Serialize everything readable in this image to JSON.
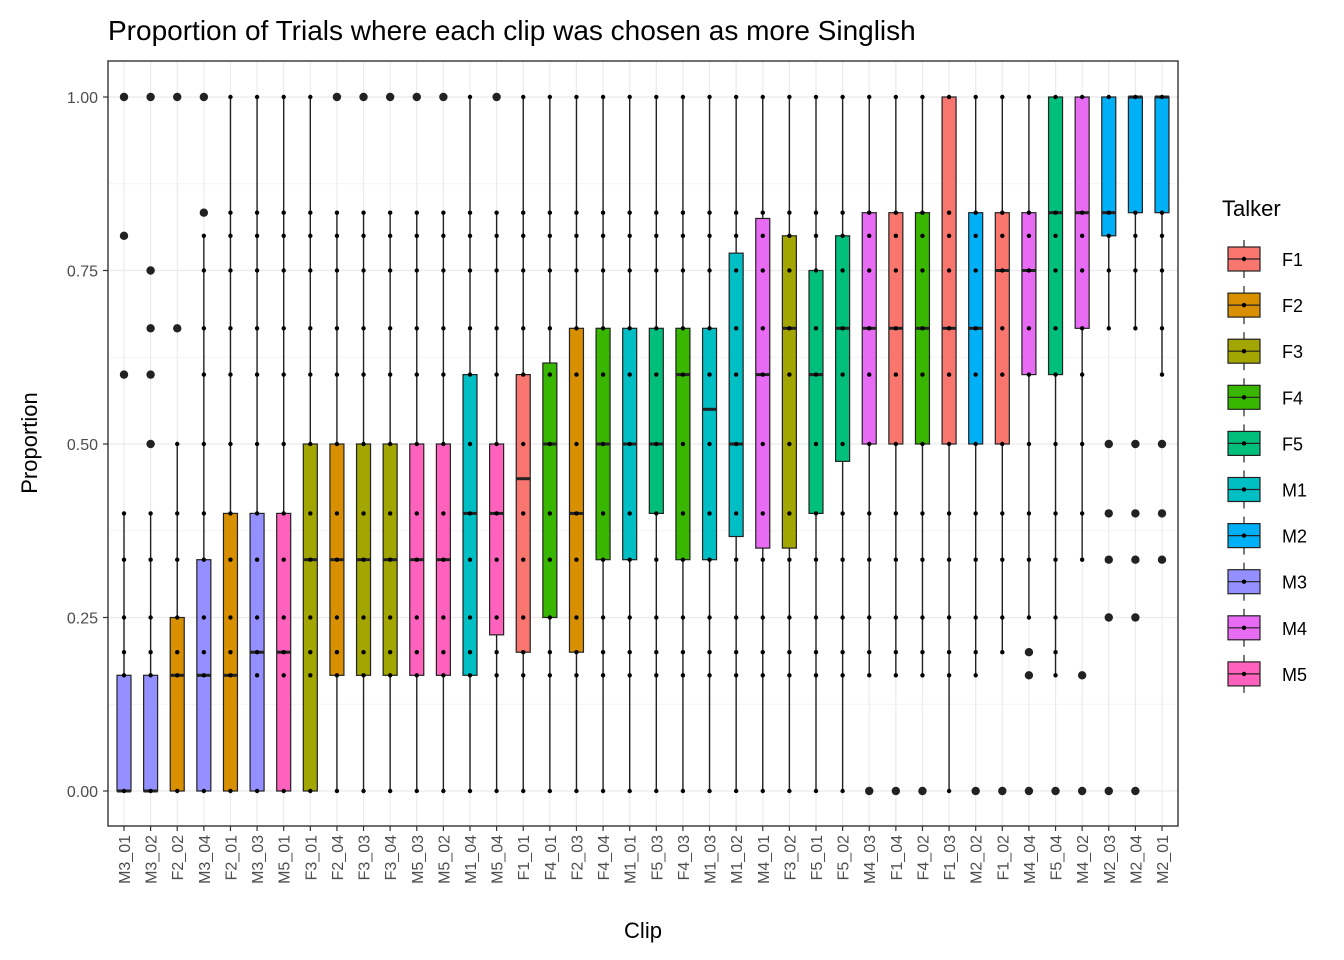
{
  "chart_data": {
    "type": "boxplot",
    "title": "Proportion of Trials where each clip was chosen as more Singlish",
    "xlabel": "Clip",
    "ylabel": "Proportion",
    "ylim": [
      -0.045,
      1.045
    ],
    "y_ticks": [
      "0.00",
      "0.25",
      "0.50",
      "0.75",
      "1.00"
    ],
    "y_tick_values": [
      0,
      0.25,
      0.5,
      0.75,
      1.0
    ],
    "grid": true,
    "legend": {
      "title": "Talker",
      "placement": "right",
      "entries": [
        {
          "label": "F1",
          "color": "#F8766D"
        },
        {
          "label": "F2",
          "color": "#D89000"
        },
        {
          "label": "F3",
          "color": "#A3A500"
        },
        {
          "label": "F4",
          "color": "#39B600"
        },
        {
          "label": "F5",
          "color": "#00BF7D"
        },
        {
          "label": "M1",
          "color": "#00BFC4"
        },
        {
          "label": "M2",
          "color": "#00B0F6"
        },
        {
          "label": "M3",
          "color": "#9590FF"
        },
        {
          "label": "M4",
          "color": "#E76BF3"
        },
        {
          "label": "M5",
          "color": "#FF62BC"
        }
      ]
    },
    "dot_levels": [
      0,
      0.1667,
      0.2,
      0.25,
      0.3333,
      0.4,
      0.5,
      0.6,
      0.6667,
      0.75,
      0.8,
      0.8333,
      1.0
    ],
    "boxes": [
      {
        "clip": "M3_01",
        "talker": "M3",
        "q1": 0,
        "median": 0,
        "q3": 0.1667,
        "wlo": 0,
        "whi": 0.4,
        "outliers": [
          0.6,
          0.8,
          1.0
        ]
      },
      {
        "clip": "M3_02",
        "talker": "M3",
        "q1": 0,
        "median": 0,
        "q3": 0.1667,
        "wlo": 0,
        "whi": 0.4,
        "outliers": [
          0.5,
          0.6,
          0.6667,
          0.75,
          1.0
        ]
      },
      {
        "clip": "F2_02",
        "talker": "F2",
        "q1": 0,
        "median": 0.1667,
        "q3": 0.25,
        "wlo": 0,
        "whi": 0.5,
        "outliers": [
          0.6667,
          1.0
        ]
      },
      {
        "clip": "M3_04",
        "talker": "M3",
        "q1": 0,
        "median": 0.1667,
        "q3": 0.3333,
        "wlo": 0,
        "whi": 0.8,
        "outliers": [
          0.8333,
          1.0
        ]
      },
      {
        "clip": "F2_01",
        "talker": "F2",
        "q1": 0,
        "median": 0.1667,
        "q3": 0.4,
        "wlo": 0,
        "whi": 1.0,
        "outliers": []
      },
      {
        "clip": "M3_03",
        "talker": "M3",
        "q1": 0,
        "median": 0.2,
        "q3": 0.4,
        "wlo": 0,
        "whi": 1.0,
        "outliers": []
      },
      {
        "clip": "M5_01",
        "talker": "M5",
        "q1": 0,
        "median": 0.2,
        "q3": 0.4,
        "wlo": 0,
        "whi": 1.0,
        "outliers": []
      },
      {
        "clip": "F3_01",
        "talker": "F3",
        "q1": 0,
        "median": 0.3333,
        "q3": 0.5,
        "wlo": 0,
        "whi": 1.0,
        "outliers": []
      },
      {
        "clip": "F2_04",
        "talker": "F2",
        "q1": 0.1667,
        "median": 0.3333,
        "q3": 0.5,
        "wlo": 0,
        "whi": 0.8333,
        "outliers": [
          1.0
        ]
      },
      {
        "clip": "F3_03",
        "talker": "F3",
        "q1": 0.1667,
        "median": 0.3333,
        "q3": 0.5,
        "wlo": 0,
        "whi": 0.8333,
        "outliers": [
          1.0
        ]
      },
      {
        "clip": "F3_04",
        "talker": "F3",
        "q1": 0.1667,
        "median": 0.3333,
        "q3": 0.5,
        "wlo": 0,
        "whi": 0.8333,
        "outliers": [
          1.0
        ]
      },
      {
        "clip": "M5_03",
        "talker": "M5",
        "q1": 0.1667,
        "median": 0.3333,
        "q3": 0.5,
        "wlo": 0,
        "whi": 0.8333,
        "outliers": [
          1.0
        ]
      },
      {
        "clip": "M5_02",
        "talker": "M5",
        "q1": 0.1667,
        "median": 0.3333,
        "q3": 0.5,
        "wlo": 0,
        "whi": 0.8333,
        "outliers": [
          1.0
        ]
      },
      {
        "clip": "M1_04",
        "talker": "M1",
        "q1": 0.1667,
        "median": 0.4,
        "q3": 0.6,
        "wlo": 0,
        "whi": 1.0,
        "outliers": []
      },
      {
        "clip": "M5_04",
        "talker": "M5",
        "q1": 0.225,
        "median": 0.4,
        "q3": 0.5,
        "wlo": 0,
        "whi": 0.8333,
        "outliers": [
          1.0
        ]
      },
      {
        "clip": "F1_01",
        "talker": "F1",
        "q1": 0.2,
        "median": 0.45,
        "q3": 0.6,
        "wlo": 0,
        "whi": 1.0,
        "outliers": []
      },
      {
        "clip": "F4_01",
        "talker": "F4",
        "q1": 0.25,
        "median": 0.5,
        "q3": 0.6167,
        "wlo": 0,
        "whi": 1.0,
        "outliers": []
      },
      {
        "clip": "F2_03",
        "talker": "F2",
        "q1": 0.2,
        "median": 0.4,
        "q3": 0.6667,
        "wlo": 0,
        "whi": 1.0,
        "outliers": []
      },
      {
        "clip": "F4_04",
        "talker": "F4",
        "q1": 0.3333,
        "median": 0.5,
        "q3": 0.6667,
        "wlo": 0,
        "whi": 1.0,
        "outliers": []
      },
      {
        "clip": "M1_01",
        "talker": "M1",
        "q1": 0.3333,
        "median": 0.5,
        "q3": 0.6667,
        "wlo": 0,
        "whi": 1.0,
        "outliers": []
      },
      {
        "clip": "F5_03",
        "talker": "F5",
        "q1": 0.4,
        "median": 0.5,
        "q3": 0.6667,
        "wlo": 0,
        "whi": 1.0,
        "outliers": []
      },
      {
        "clip": "F4_03",
        "talker": "F4",
        "q1": 0.3333,
        "median": 0.6,
        "q3": 0.6667,
        "wlo": 0,
        "whi": 1.0,
        "outliers": []
      },
      {
        "clip": "M1_03",
        "talker": "M1",
        "q1": 0.3333,
        "median": 0.55,
        "q3": 0.6667,
        "wlo": 0,
        "whi": 1.0,
        "outliers": []
      },
      {
        "clip": "M1_02",
        "talker": "M1",
        "q1": 0.3667,
        "median": 0.5,
        "q3": 0.775,
        "wlo": 0,
        "whi": 1.0,
        "outliers": []
      },
      {
        "clip": "M4_01",
        "talker": "M4",
        "q1": 0.35,
        "median": 0.6,
        "q3": 0.825,
        "wlo": 0,
        "whi": 1.0,
        "outliers": []
      },
      {
        "clip": "F3_02",
        "talker": "F3",
        "q1": 0.35,
        "median": 0.6667,
        "q3": 0.8,
        "wlo": 0,
        "whi": 1.0,
        "outliers": []
      },
      {
        "clip": "F5_01",
        "talker": "F5",
        "q1": 0.4,
        "median": 0.6,
        "q3": 0.75,
        "wlo": 0,
        "whi": 1.0,
        "outliers": []
      },
      {
        "clip": "F5_02",
        "talker": "F5",
        "q1": 0.475,
        "median": 0.6667,
        "q3": 0.8,
        "wlo": 0,
        "whi": 1.0,
        "outliers": []
      },
      {
        "clip": "M4_03",
        "talker": "M4",
        "q1": 0.5,
        "median": 0.6667,
        "q3": 0.8333,
        "wlo": 0.1667,
        "whi": 1.0,
        "outliers": [
          0
        ]
      },
      {
        "clip": "F1_04",
        "talker": "F1",
        "q1": 0.5,
        "median": 0.6667,
        "q3": 0.8333,
        "wlo": 0.1667,
        "whi": 1.0,
        "outliers": [
          0
        ]
      },
      {
        "clip": "F4_02",
        "talker": "F4",
        "q1": 0.5,
        "median": 0.6667,
        "q3": 0.8333,
        "wlo": 0.1667,
        "whi": 1.0,
        "outliers": [
          0
        ]
      },
      {
        "clip": "F1_03",
        "talker": "F1",
        "q1": 0.5,
        "median": 0.6667,
        "q3": 1.0,
        "wlo": 0,
        "whi": 1.0,
        "outliers": []
      },
      {
        "clip": "M2_02",
        "talker": "M2",
        "q1": 0.5,
        "median": 0.6667,
        "q3": 0.8333,
        "wlo": 0.1667,
        "whi": 1.0,
        "outliers": [
          0
        ]
      },
      {
        "clip": "F1_02",
        "talker": "F1",
        "q1": 0.5,
        "median": 0.75,
        "q3": 0.8333,
        "wlo": 0.2,
        "whi": 1.0,
        "outliers": [
          0
        ]
      },
      {
        "clip": "M4_04",
        "talker": "M4",
        "q1": 0.6,
        "median": 0.75,
        "q3": 0.8333,
        "wlo": 0.25,
        "whi": 1.0,
        "outliers": [
          0,
          0.1667,
          0.2
        ]
      },
      {
        "clip": "F5_04",
        "talker": "F5",
        "q1": 0.6,
        "median": 0.8333,
        "q3": 1.0,
        "wlo": 0.1667,
        "whi": 1.0,
        "outliers": [
          0
        ]
      },
      {
        "clip": "M4_02",
        "talker": "M4",
        "q1": 0.6667,
        "median": 0.8333,
        "q3": 1.0,
        "wlo": 0.3333,
        "whi": 1.0,
        "outliers": [
          0,
          0.1667
        ]
      },
      {
        "clip": "M2_03",
        "talker": "M2",
        "q1": 0.8,
        "median": 0.8333,
        "q3": 1.0,
        "wlo": 0.6667,
        "whi": 1.0,
        "outliers": [
          0,
          0.25,
          0.3333,
          0.4,
          0.5
        ]
      },
      {
        "clip": "M2_04",
        "talker": "M2",
        "q1": 0.8333,
        "median": 1.0,
        "q3": 1.0,
        "wlo": 0.6667,
        "whi": 1.0,
        "outliers": [
          0,
          0.25,
          0.3333,
          0.4,
          0.5
        ]
      },
      {
        "clip": "M2_01",
        "talker": "M2",
        "q1": 0.8333,
        "median": 1.0,
        "q3": 1.0,
        "wlo": 0.6,
        "whi": 1.0,
        "outliers": [
          0.3333,
          0.4,
          0.5
        ]
      }
    ]
  }
}
